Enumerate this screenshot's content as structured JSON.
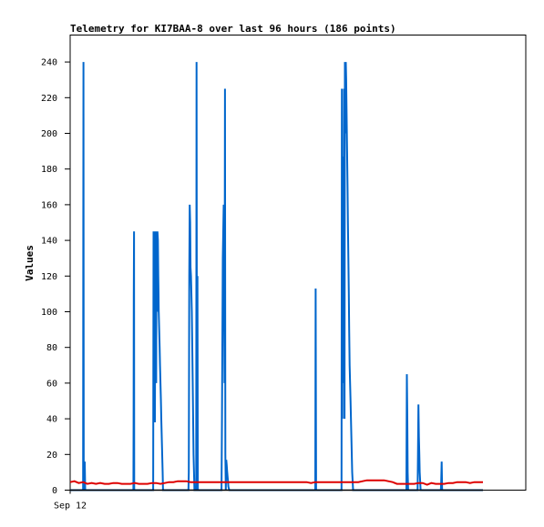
{
  "chart_data": {
    "type": "line",
    "title": "Telemetry for KI7BAA-8 over last 96 hours (186 points)",
    "ylabel": "Values",
    "xlabel": "",
    "x_tick_labels": [
      {
        "x": 0,
        "label": "Sep 12"
      }
    ],
    "xlim": [
      0,
      96
    ],
    "ylim": [
      0,
      255
    ],
    "y_ticks": [
      0,
      20,
      40,
      60,
      80,
      100,
      120,
      140,
      160,
      180,
      200,
      220,
      240
    ],
    "grid": false,
    "series": [
      {
        "color": "#0066cc",
        "x": [
          0,
          2.4,
          3.0,
          3.05,
          3.1,
          3.15,
          3.2,
          3.3,
          3.35,
          3.4,
          3.5,
          3.6,
          3.7,
          3.8,
          14.7,
          14.75,
          14.8,
          14.85,
          14.9,
          15.0,
          15.1,
          19.2,
          19.3,
          19.4,
          19.5,
          19.6,
          19.65,
          19.7,
          19.8,
          19.9,
          20.0,
          20.1,
          20.2,
          20.3,
          20.4,
          20.45,
          20.5,
          20.55,
          20.6,
          20.7,
          20.8,
          20.9,
          21.0,
          21.1,
          21.2,
          21.3,
          21.4,
          21.5,
          21.6,
          27.4,
          27.5,
          27.6,
          27.7,
          27.8,
          27.9,
          28.0,
          28.1,
          28.3,
          28.5,
          28.7,
          28.9,
          29.1,
          29.3,
          29.4,
          29.5,
          29.6,
          29.7,
          29.8,
          29.9,
          35.2,
          35.3,
          35.5,
          35.7,
          35.8,
          35.9,
          36.0,
          36.1,
          36.2,
          36.3,
          36.4,
          36.5,
          36.6,
          36.7,
          36.8,
          37.0,
          37.2,
          37.4,
          37.6,
          38.0,
          38.5,
          39.0,
          39.5,
          40.0,
          40.5,
          41.0,
          41.5,
          42.0,
          43.0,
          44.0,
          45.0,
          46.0,
          47.0,
          48.0,
          49.0,
          50.0,
          51.0,
          52.0,
          53.0,
          54.0,
          55.0,
          56.0,
          57.0,
          57.1,
          57.2,
          57.3,
          63.1,
          63.2,
          63.3,
          63.4,
          63.5,
          63.6,
          63.7,
          63.8,
          63.9,
          64.0,
          64.1,
          64.2,
          64.3,
          64.4,
          64.5,
          64.6,
          64.7,
          64.8,
          64.9,
          65.0,
          65.2,
          65.4,
          65.6,
          65.8,
          66.0,
          66.2,
          66.4,
          66.6,
          66.8,
          67.0,
          67.2,
          67.4,
          67.6,
          67.8,
          68.0,
          78.1,
          78.2,
          78.3,
          78.4,
          78.5,
          78.6,
          80.8,
          80.9,
          81.0,
          81.1,
          81.2,
          81.3,
          81.4,
          81.5,
          81.6,
          81.8,
          82.0,
          82.3,
          82.6,
          83.0,
          86.2,
          86.3,
          86.4,
          86.5,
          86.6,
          86.7,
          86.8,
          87.0,
          87.5,
          88.0,
          89.0,
          90.0,
          91.0,
          92.0,
          93.0,
          96.0
        ],
        "values": [
          0,
          0,
          0,
          145,
          240,
          0,
          5,
          0,
          0,
          16,
          0,
          0,
          0,
          0,
          0,
          38,
          108,
          145,
          0,
          0,
          0,
          0,
          0,
          145,
          38,
          108,
          145,
          38,
          108,
          145,
          60,
          145,
          100,
          145,
          140,
          130,
          120,
          110,
          100,
          90,
          80,
          70,
          60,
          50,
          40,
          30,
          20,
          10,
          0,
          0,
          0,
          10,
          120,
          160,
          150,
          125,
          120,
          100,
          60,
          20,
          0,
          0,
          0,
          240,
          0,
          120,
          0,
          0,
          0,
          0,
          40,
          130,
          160,
          110,
          60,
          225,
          20,
          0,
          17,
          14,
          11,
          8,
          5,
          2,
          0,
          0,
          0,
          0,
          0,
          0,
          0,
          0,
          0,
          0,
          0,
          0,
          0,
          0,
          0,
          0,
          0,
          0,
          0,
          0,
          0,
          0,
          0,
          0,
          0,
          0,
          0,
          0,
          113,
          0,
          0,
          0,
          225,
          40,
          187,
          110,
          60,
          225,
          40,
          240,
          200,
          240,
          230,
          210,
          190,
          170,
          150,
          130,
          110,
          90,
          70,
          50,
          30,
          10,
          0,
          0,
          0,
          0,
          0,
          0,
          0,
          0,
          0,
          0,
          0,
          0,
          0,
          0,
          65,
          40,
          10,
          0,
          0,
          20,
          48,
          30,
          20,
          10,
          5,
          0,
          0,
          0,
          0,
          0,
          0,
          0,
          0,
          5,
          16,
          0,
          0,
          0,
          0,
          0,
          0,
          0,
          0,
          0,
          0,
          0,
          0,
          0
        ]
      },
      {
        "color": "#dd0000",
        "x": [
          0,
          1,
          2,
          3,
          4,
          5,
          6,
          7,
          8,
          9,
          10,
          11,
          12,
          13,
          14,
          15,
          16,
          17,
          18,
          19,
          20,
          21,
          22,
          23,
          24,
          25,
          26,
          27,
          28,
          29,
          30,
          31,
          32,
          33,
          34,
          35,
          36,
          37,
          38,
          39,
          40,
          41,
          42,
          43,
          44,
          45,
          46,
          47,
          48,
          49,
          50,
          51,
          52,
          53,
          54,
          55,
          56,
          57,
          58,
          59,
          60,
          61,
          62,
          63,
          64,
          65,
          66,
          67,
          68,
          69,
          70,
          71,
          72,
          73,
          74,
          75,
          76,
          77,
          78,
          79,
          80,
          81,
          82,
          83,
          84,
          85,
          86,
          87,
          88,
          89,
          90,
          91,
          92,
          93,
          94,
          95,
          96
        ],
        "values": [
          4.5,
          5,
          4,
          4.5,
          3.5,
          4,
          3.5,
          4,
          3.5,
          3.5,
          4,
          4,
          3.5,
          3.5,
          3.5,
          4,
          3.5,
          3.5,
          3.5,
          4,
          4,
          3.5,
          4,
          4.5,
          4.5,
          5,
          5,
          5,
          4.5,
          4.5,
          4.5,
          4.5,
          4.5,
          4.5,
          4.5,
          4.5,
          4.5,
          4.5,
          4.5,
          4.5,
          4.5,
          4.5,
          4.5,
          4.5,
          4.5,
          4.5,
          4.5,
          4.5,
          4.5,
          4.5,
          4.5,
          4.5,
          4.5,
          4.5,
          4.5,
          4.5,
          4,
          4.5,
          4.5,
          4.5,
          4.5,
          4.5,
          4.5,
          4.5,
          4.5,
          4.5,
          4.5,
          4.5,
          5,
          5.5,
          5.5,
          5.5,
          5.5,
          5.5,
          5,
          4.5,
          3.5,
          3.5,
          3.5,
          3.5,
          3.5,
          4,
          4,
          3,
          4,
          3.5,
          3.5,
          3.5,
          4,
          4,
          4.5,
          4.5,
          4.5,
          4,
          4.5,
          4.5,
          4.5
        ]
      },
      {
        "color": "#000000",
        "x": [
          0,
          96
        ],
        "values": [
          0,
          0
        ]
      }
    ]
  }
}
